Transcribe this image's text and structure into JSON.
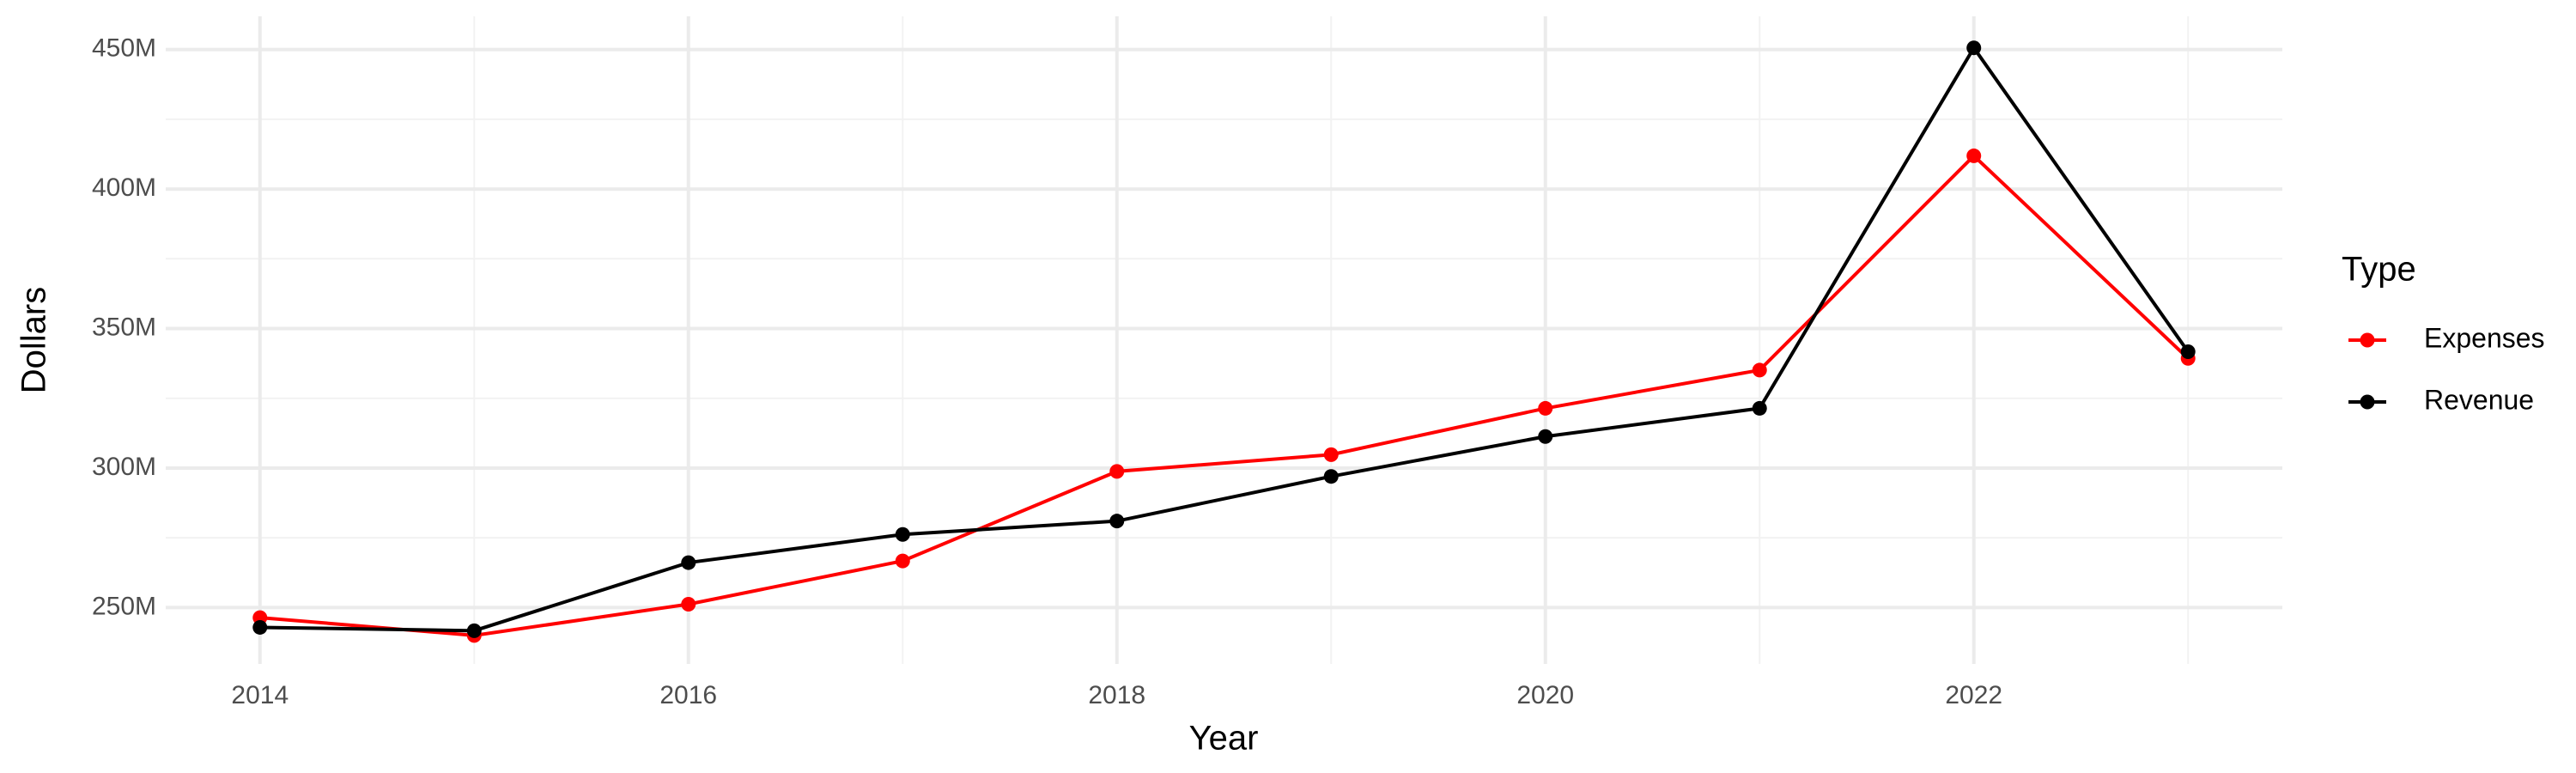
{
  "chart_data": {
    "type": "line",
    "x_label": "Year",
    "y_label": "Dollars",
    "x": [
      2014,
      2015,
      2016,
      2017,
      2018,
      2019,
      2020,
      2021,
      2022,
      2023
    ],
    "series": [
      {
        "name": "Expenses",
        "color": "#ff0000",
        "values": [
          246400000,
          240000000,
          251200000,
          266700000,
          298800000,
          304800000,
          321400000,
          335100000,
          411900000,
          339300000
        ]
      },
      {
        "name": "Revenue",
        "color": "#000000",
        "values": [
          242900000,
          241700000,
          266100000,
          276200000,
          281000000,
          297000000,
          311300000,
          321400000,
          450600000,
          341700000
        ]
      }
    ],
    "legend_title": "Type",
    "legend_position": "right",
    "xlim": [
      2013.56,
      2023.44
    ],
    "xticks": [
      2014,
      2016,
      2018,
      2020,
      2022
    ],
    "ylim": [
      229800000,
      461900000
    ],
    "yticks": [
      {
        "value": 250000000,
        "label": "250M"
      },
      {
        "value": 300000000,
        "label": "300M"
      },
      {
        "value": 350000000,
        "label": "350M"
      },
      {
        "value": 400000000,
        "label": "400M"
      },
      {
        "value": 450000000,
        "label": "450M"
      }
    ],
    "grid": true
  }
}
